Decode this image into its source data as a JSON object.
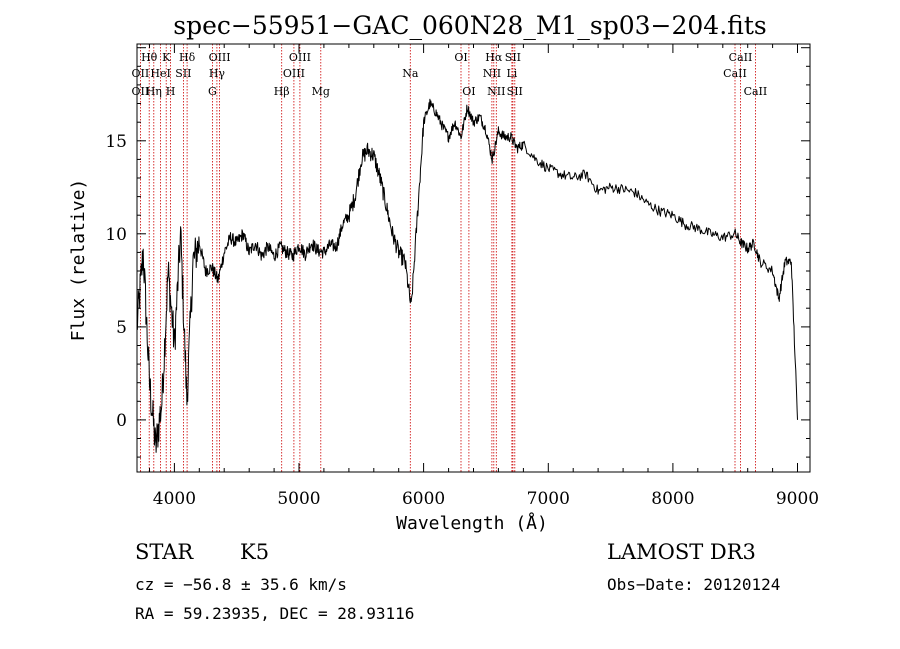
{
  "chart_data": {
    "type": "line",
    "title": "spec−55951−GAC_060N28_M1_sp03−204.fits",
    "xlabel": "Wavelength (Å)",
    "ylabel": "Flux (relative)",
    "xlim": [
      3700,
      9100
    ],
    "ylim": [
      -2.8,
      20.2
    ],
    "xticks": [
      4000,
      5000,
      6000,
      7000,
      8000,
      9000
    ],
    "yticks": [
      0,
      5,
      10,
      15
    ],
    "grid": false,
    "series": [
      {
        "name": "spectrum",
        "x": [
          3700,
          3750,
          3800,
          3850,
          3900,
          3950,
          4000,
          4050,
          4100,
          4150,
          4200,
          4250,
          4300,
          4350,
          4400,
          4450,
          4500,
          4550,
          4600,
          4650,
          4700,
          4750,
          4800,
          4850,
          4900,
          4950,
          5000,
          5050,
          5100,
          5150,
          5200,
          5250,
          5300,
          5350,
          5400,
          5450,
          5500,
          5550,
          5600,
          5650,
          5700,
          5750,
          5800,
          5850,
          5900,
          5950,
          6000,
          6050,
          6100,
          6150,
          6200,
          6250,
          6300,
          6350,
          6400,
          6450,
          6500,
          6550,
          6600,
          6650,
          6700,
          6750,
          6800,
          6900,
          7000,
          7100,
          7200,
          7300,
          7400,
          7500,
          7600,
          7700,
          7800,
          7900,
          8000,
          8100,
          8200,
          8300,
          8400,
          8500,
          8550,
          8600,
          8650,
          8700,
          8800,
          8850,
          8900,
          8950,
          9000
        ],
        "y": [
          5.0,
          9.0,
          2.0,
          -1.5,
          1.0,
          8.0,
          4.0,
          10.0,
          1.0,
          8.5,
          9.5,
          8.0,
          8.2,
          7.5,
          9.0,
          9.8,
          9.5,
          10.0,
          9.0,
          9.5,
          8.8,
          9.3,
          8.8,
          9.3,
          9.0,
          8.8,
          9.4,
          8.9,
          9.5,
          9.1,
          9.0,
          9.4,
          9.3,
          10.5,
          11.0,
          12.0,
          14.0,
          14.5,
          14.2,
          13.0,
          11.5,
          10.0,
          9.0,
          8.5,
          6.0,
          11.0,
          16.0,
          17.0,
          16.5,
          15.8,
          15.2,
          16.0,
          15.2,
          16.8,
          16.0,
          16.3,
          15.6,
          14.0,
          15.5,
          15.2,
          15.2,
          14.6,
          14.8,
          14.0,
          13.5,
          13.2,
          13.0,
          13.2,
          12.3,
          12.5,
          12.4,
          12.2,
          11.6,
          11.2,
          11.0,
          10.5,
          10.3,
          10.0,
          9.8,
          10.0,
          9.5,
          9.2,
          9.5,
          8.5,
          8.0,
          6.5,
          8.5,
          8.5,
          0.0
        ]
      }
    ],
    "annotations": [
      {
        "text": "Hθ",
        "wavelength": 3798,
        "row": 1
      },
      {
        "text": "OII",
        "wavelength": 3727,
        "row": 2
      },
      {
        "text": "OII",
        "wavelength": 3727,
        "row": 3
      },
      {
        "text": "K",
        "wavelength": 3934,
        "row": 1
      },
      {
        "text": "HeI",
        "wavelength": 3889,
        "row": 2
      },
      {
        "text": "Hη",
        "wavelength": 3835,
        "row": 3
      },
      {
        "text": "Hδ",
        "wavelength": 4102,
        "row": 1
      },
      {
        "text": "SII",
        "wavelength": 4072,
        "row": 2
      },
      {
        "text": "H",
        "wavelength": 3969,
        "row": 3
      },
      {
        "text": "OIII",
        "wavelength": 4363,
        "row": 1
      },
      {
        "text": "Hγ",
        "wavelength": 4341,
        "row": 2
      },
      {
        "text": "G",
        "wavelength": 4305,
        "row": 3
      },
      {
        "text": "OIII",
        "wavelength": 5007,
        "row": 1
      },
      {
        "text": "OIII",
        "wavelength": 4959,
        "row": 2
      },
      {
        "text": "Hβ",
        "wavelength": 4861,
        "row": 3
      },
      {
        "text": "Mg",
        "wavelength": 5175,
        "row": 3
      },
      {
        "text": "Na",
        "wavelength": 5893,
        "row": 2
      },
      {
        "text": "OI",
        "wavelength": 6300,
        "row": 1
      },
      {
        "text": "OI",
        "wavelength": 6363,
        "row": 3
      },
      {
        "text": "Hα",
        "wavelength": 6563,
        "row": 1
      },
      {
        "text": "NII",
        "wavelength": 6548,
        "row": 2
      },
      {
        "text": "NII",
        "wavelength": 6583,
        "row": 3
      },
      {
        "text": "SII",
        "wavelength": 6716,
        "row": 1
      },
      {
        "text": "Li",
        "wavelength": 6708,
        "row": 2
      },
      {
        "text": "SII",
        "wavelength": 6731,
        "row": 3
      },
      {
        "text": "CaII",
        "wavelength": 8542,
        "row": 1
      },
      {
        "text": "CaII",
        "wavelength": 8498,
        "row": 2
      },
      {
        "text": "CaII",
        "wavelength": 8662,
        "row": 3
      }
    ]
  },
  "info": {
    "class": "STAR",
    "subclass": "K5",
    "survey": "LAMOST DR3",
    "cz": "cz = −56.8 ± 35.6 km/s",
    "obs_date": "Obs−Date: 20120124",
    "coords": "RA =  59.23935, DEC =  28.93116"
  },
  "colors": {
    "spectrum": "#000000",
    "line_markers": "#cc0000",
    "axes": "#000000"
  }
}
